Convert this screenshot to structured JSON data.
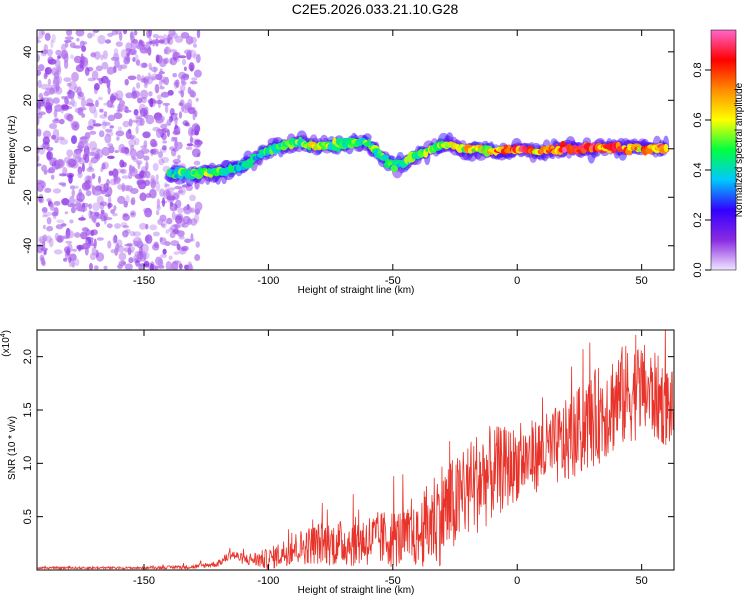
{
  "title": "C2E5.2026.033.21.10.G28",
  "chart_data": [
    {
      "type": "heatmap",
      "xlabel": "Height of straight line (km)",
      "ylabel": "Frequency (Hz)",
      "xlim": [
        -193,
        63
      ],
      "ylim": [
        -50,
        49
      ],
      "xticks": [
        -150,
        -100,
        -50,
        0,
        50
      ],
      "yticks": [
        -40,
        -20,
        0,
        20,
        40
      ],
      "colorbar": {
        "label": "Normalized spectral amplitude",
        "range": [
          0.0,
          0.96
        ],
        "ticks": [
          0.0,
          0.2,
          0.4,
          0.6,
          0.8
        ],
        "colors": [
          "#f0e6ff",
          "#8a2be2",
          "#3300ff",
          "#00c8ff",
          "#00ff40",
          "#ffff00",
          "#ff8c00",
          "#ff0000",
          "#ff66cc"
        ]
      },
      "ridge": {
        "note_x": "height (km)",
        "points": [
          {
            "x": -140,
            "f": -10.5,
            "amp": 0.45
          },
          {
            "x": -125,
            "f": -10,
            "amp": 0.55
          },
          {
            "x": -112,
            "f": -8,
            "amp": 0.4
          },
          {
            "x": -100,
            "f": -1,
            "amp": 0.45
          },
          {
            "x": -90,
            "f": 3,
            "amp": 0.55
          },
          {
            "x": -80,
            "f": 1,
            "amp": 0.6
          },
          {
            "x": -70,
            "f": 2,
            "amp": 0.5
          },
          {
            "x": -60,
            "f": 2.5,
            "amp": 0.55
          },
          {
            "x": -50,
            "f": -7,
            "amp": 0.45
          },
          {
            "x": -40,
            "f": -3,
            "amp": 0.55
          },
          {
            "x": -30,
            "f": 2,
            "amp": 0.6
          },
          {
            "x": -20,
            "f": 0,
            "amp": 0.65
          },
          {
            "x": -10,
            "f": -1,
            "amp": 0.7
          },
          {
            "x": 0,
            "f": -0.5,
            "amp": 0.85
          },
          {
            "x": 10,
            "f": -1,
            "amp": 0.75
          },
          {
            "x": 20,
            "f": 0,
            "amp": 0.9
          },
          {
            "x": 30,
            "f": 0,
            "amp": 0.9
          },
          {
            "x": 40,
            "f": 0.5,
            "amp": 0.8
          },
          {
            "x": 50,
            "f": 0,
            "amp": 0.75
          },
          {
            "x": 60,
            "f": 0.5,
            "amp": 0.8
          }
        ]
      },
      "noise_region": {
        "x": [
          -193,
          -128
        ],
        "f": [
          -50,
          49
        ],
        "amp": 0.15
      }
    },
    {
      "type": "line",
      "xlabel": "Height of straight line (km)",
      "ylabel": "SNR (10 * v/v)",
      "y_multiplier": "(x10",
      "y_multiplier_exp": "4",
      "y_multiplier_close": ")",
      "xlim": [
        -193,
        63
      ],
      "ylim": [
        0.0,
        2.25
      ],
      "xticks": [
        -150,
        -100,
        -50,
        0,
        50
      ],
      "yticks": [
        0.5,
        1.0,
        1.5,
        2.0
      ],
      "ytick_labels": [
        "0.5",
        "1.0",
        "1.5",
        "2.0"
      ],
      "series": [
        {
          "color": "#e8332a",
          "envelope_x": [
            -193,
            -150,
            -130,
            -120,
            -115,
            -110,
            -100,
            -90,
            -80,
            -70,
            -60,
            -50,
            -40,
            -35,
            -30,
            -25,
            -20,
            -15,
            -10,
            -5,
            0,
            10,
            20,
            30,
            40,
            50,
            60,
            63
          ],
          "envelope_mean": [
            0.02,
            0.02,
            0.03,
            0.06,
            0.15,
            0.1,
            0.1,
            0.2,
            0.25,
            0.25,
            0.28,
            0.3,
            0.3,
            0.45,
            0.55,
            0.6,
            0.75,
            0.85,
            0.9,
            0.95,
            1.0,
            1.1,
            1.2,
            1.4,
            1.6,
            1.7,
            1.55,
            1.5
          ],
          "envelope_spread": [
            0.01,
            0.01,
            0.02,
            0.03,
            0.05,
            0.05,
            0.1,
            0.15,
            0.2,
            0.22,
            0.25,
            0.28,
            0.28,
            0.45,
            0.5,
            0.45,
            0.45,
            0.5,
            0.45,
            0.4,
            0.35,
            0.35,
            0.4,
            0.45,
            0.5,
            0.45,
            0.4,
            0.35
          ]
        }
      ]
    }
  ]
}
